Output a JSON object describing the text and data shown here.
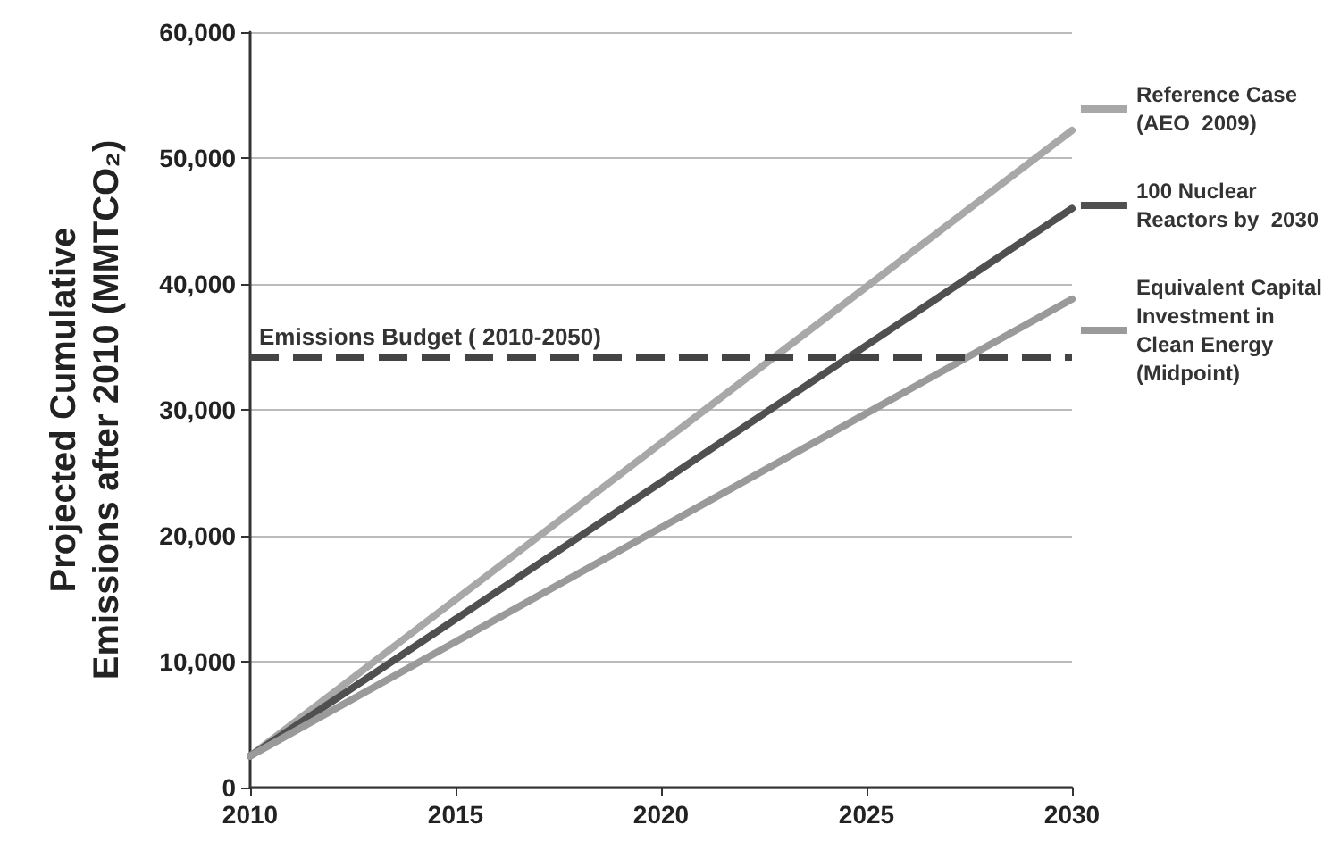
{
  "chart_data": {
    "type": "line",
    "ylabel": "Projected Cumulative\nEmissions after 2010 (MMTCO₂)",
    "x": [
      2010,
      2030
    ],
    "series": [
      {
        "name": "Reference Case\n(AEO  2009)",
        "color": "#a8a8a8",
        "values": [
          2500,
          52200
        ]
      },
      {
        "name": "100 Nuclear\nReactors by  2030",
        "color": "#505050",
        "values": [
          2500,
          46000
        ]
      },
      {
        "name": "Equivalent Capital\nInvestment in\nClean Energy\n(Midpoint)",
        "color": "#9a9a9a",
        "values": [
          2500,
          38800
        ]
      }
    ],
    "xlim": [
      2010,
      2030
    ],
    "xticks": [
      2010,
      2015,
      2020,
      2025,
      2030
    ],
    "ylim": [
      0,
      60000
    ],
    "yticks": [
      0,
      {
        "value": 10000,
        "label": "10,000"
      },
      {
        "value": 20000,
        "label": "20,000"
      },
      {
        "value": 30000,
        "label": "30,000"
      },
      {
        "value": 40000,
        "label": "40,000"
      },
      {
        "value": 50000,
        "label": "50,000"
      },
      {
        "value": 60000,
        "label": "60,000"
      }
    ],
    "ref_lines": [
      {
        "axis": "y",
        "value": 34200,
        "label": "Emissions Budget ( 2010-2050)",
        "color": "#444444",
        "line_style": "dashed"
      }
    ],
    "grid": "y",
    "legend": "right",
    "marker": "none",
    "line_style": "solid"
  }
}
